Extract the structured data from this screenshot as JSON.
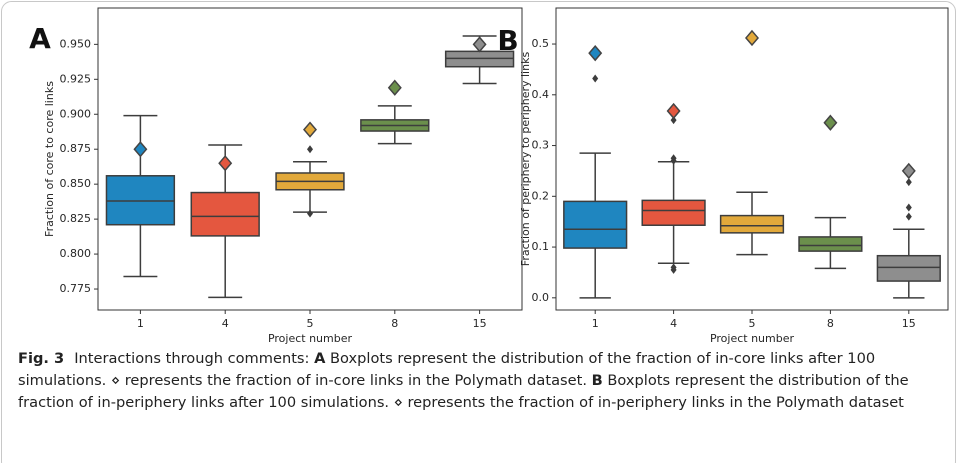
{
  "chart_data": [
    {
      "type": "boxplot",
      "panel_label": "A",
      "xlabel": "Project number",
      "ylabel": "Fraction of core to core links",
      "categories": [
        "1",
        "4",
        "5",
        "8",
        "15"
      ],
      "colors": [
        "#1f86c0",
        "#e4573f",
        "#e2a93b",
        "#6b8f4c",
        "#8e8e8e"
      ],
      "boxes": [
        {
          "whislo": 0.784,
          "q1": 0.821,
          "med": 0.838,
          "q3": 0.856,
          "whishi": 0.899,
          "fliers": []
        },
        {
          "whislo": 0.769,
          "q1": 0.813,
          "med": 0.827,
          "q3": 0.844,
          "whishi": 0.878,
          "fliers": []
        },
        {
          "whislo": 0.83,
          "q1": 0.846,
          "med": 0.852,
          "q3": 0.858,
          "whishi": 0.866,
          "fliers": [
            0.875,
            0.829
          ]
        },
        {
          "whislo": 0.879,
          "q1": 0.888,
          "med": 0.892,
          "q3": 0.896,
          "whishi": 0.906,
          "fliers": []
        },
        {
          "whislo": 0.922,
          "q1": 0.934,
          "med": 0.94,
          "q3": 0.945,
          "whishi": 0.956,
          "fliers": []
        }
      ],
      "observed": [
        0.875,
        0.865,
        0.889,
        0.919,
        0.95
      ],
      "ylim": [
        0.76,
        0.976
      ],
      "yticks": [
        0.775,
        {
          "value": 0.8,
          "label": "0.800"
        },
        0.825,
        {
          "value": 0.85,
          "label": "0.850"
        },
        0.875,
        {
          "value": 0.9,
          "label": "0.900"
        },
        0.925,
        {
          "value": 0.95,
          "label": "0.950"
        }
      ]
    },
    {
      "type": "boxplot",
      "panel_label": "B",
      "xlabel": "Project number",
      "ylabel": "Fraction of periphery to periphery links",
      "categories": [
        "1",
        "4",
        "5",
        "8",
        "15"
      ],
      "colors": [
        "#1f86c0",
        "#e4573f",
        "#e2a93b",
        "#6b8f4c",
        "#8e8e8e"
      ],
      "boxes": [
        {
          "whislo": 0.0,
          "q1": 0.098,
          "med": 0.135,
          "q3": 0.19,
          "whishi": 0.285,
          "fliers": [
            0.432
          ]
        },
        {
          "whislo": 0.068,
          "q1": 0.143,
          "med": 0.172,
          "q3": 0.192,
          "whishi": 0.268,
          "fliers": [
            0.275,
            0.27,
            0.35,
            0.055,
            0.06
          ]
        },
        {
          "whislo": 0.085,
          "q1": 0.128,
          "med": 0.142,
          "q3": 0.162,
          "whishi": 0.208,
          "fliers": []
        },
        {
          "whislo": 0.058,
          "q1": 0.092,
          "med": 0.103,
          "q3": 0.12,
          "whishi": 0.158,
          "fliers": []
        },
        {
          "whislo": 0.0,
          "q1": 0.033,
          "med": 0.06,
          "q3": 0.083,
          "whishi": 0.135,
          "fliers": [
            0.16,
            0.178,
            0.228
          ]
        }
      ],
      "observed": [
        0.482,
        0.368,
        0.512,
        0.345,
        0.25
      ],
      "ylim": [
        -0.024,
        0.571
      ],
      "yticks": [
        {
          "value": 0,
          "label": "0.0"
        },
        0.1,
        0.2,
        0.3,
        0.4,
        0.5
      ]
    }
  ],
  "caption": {
    "parts": [
      {
        "text": "Fig. 3",
        "bold": true
      },
      {
        "text": "Interactions through comments: "
      },
      {
        "text": "A",
        "bold": true
      },
      {
        "text": " Boxplots represent the distribution of the fraction of in-core links after 100 simulations. ⋄ represents the fraction of in-core links in the Polymath dataset. "
      },
      {
        "text": "B",
        "bold": true
      },
      {
        "text": " Boxplots represent the distribution of the fraction of in-periphery links after 100 simulations. ⋄ represents the fraction of in-periphery links in the Polymath dataset"
      }
    ]
  }
}
